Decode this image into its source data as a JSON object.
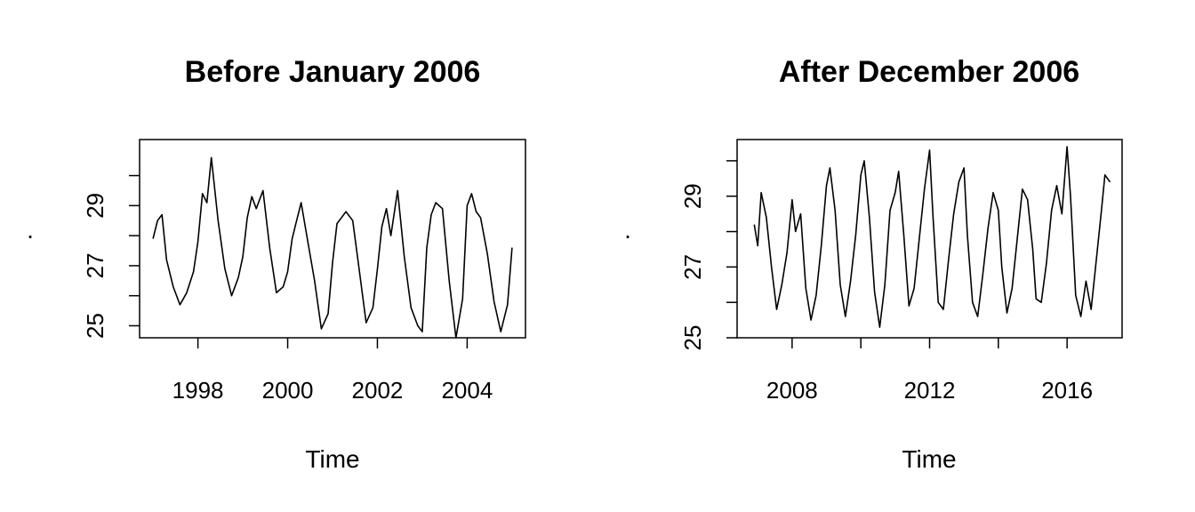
{
  "chart_data": [
    {
      "type": "line",
      "title": "Before January 2006",
      "xlabel": "Time",
      "ylabel": ".",
      "xlim": [
        1996.7,
        2005.3
      ],
      "ylim": [
        24.6,
        31.2
      ],
      "x_ticks": [
        1998,
        2000,
        2002,
        2004
      ],
      "y_ticks": [
        25,
        26,
        27,
        28,
        29,
        30
      ],
      "y_tick_labels": [
        "25",
        "27",
        "29"
      ],
      "y_labeled_ticks": [
        25,
        27,
        29
      ],
      "grid": false,
      "series": [
        {
          "x": [
            1997.0,
            1997.1,
            1997.2,
            1997.3,
            1997.45,
            1997.6,
            1997.75,
            1997.9,
            1998.0,
            1998.1,
            1998.2,
            1998.3,
            1998.45,
            1998.6,
            1998.75,
            1998.9,
            1999.0,
            1999.1,
            1999.2,
            1999.3,
            1999.45,
            1999.6,
            1999.75,
            1999.9,
            2000.0,
            2000.1,
            2000.2,
            2000.3,
            2000.45,
            2000.6,
            2000.75,
            2000.9,
            2001.0,
            2001.1,
            2001.2,
            2001.3,
            2001.45,
            2001.6,
            2001.75,
            2001.9,
            2002.0,
            2002.1,
            2002.2,
            2002.3,
            2002.45,
            2002.6,
            2002.75,
            2002.9,
            2003.0,
            2003.1,
            2003.2,
            2003.3,
            2003.45,
            2003.6,
            2003.75,
            2003.9,
            2004.0,
            2004.1,
            2004.2,
            2004.3,
            2004.45,
            2004.6,
            2004.75,
            2004.9,
            2005.0
          ],
          "y": [
            27.9,
            28.5,
            28.7,
            27.2,
            26.3,
            25.7,
            26.1,
            26.8,
            27.8,
            29.4,
            29.1,
            30.6,
            28.5,
            26.9,
            26.0,
            26.6,
            27.3,
            28.6,
            29.3,
            28.9,
            29.5,
            27.6,
            26.1,
            26.3,
            26.8,
            27.9,
            28.5,
            29.1,
            27.8,
            26.5,
            24.9,
            25.4,
            27.1,
            28.4,
            28.6,
            28.8,
            28.5,
            26.8,
            25.1,
            25.6,
            26.9,
            28.3,
            28.9,
            28.0,
            29.5,
            27.3,
            25.6,
            25.0,
            24.8,
            27.6,
            28.7,
            29.1,
            28.9,
            26.5,
            24.6,
            25.9,
            29.0,
            29.4,
            28.8,
            28.6,
            27.4,
            25.8,
            24.8,
            25.7,
            27.6
          ]
        }
      ]
    },
    {
      "type": "line",
      "title": "After December 2006",
      "xlabel": "Time",
      "ylabel": ".",
      "xlim": [
        2006.4,
        2017.6
      ],
      "ylim": [
        25.0,
        30.6
      ],
      "x_ticks": [
        2008,
        2010,
        2012,
        2014,
        2016
      ],
      "x_tick_labels": [
        "2008",
        "2012",
        "2016"
      ],
      "x_labeled_ticks": [
        2008,
        2012,
        2016
      ],
      "y_ticks": [
        25,
        26,
        27,
        28,
        29,
        30
      ],
      "y_tick_labels": [
        "25",
        "27",
        "29"
      ],
      "y_labeled_ticks": [
        25,
        27,
        29
      ],
      "grid": false,
      "series": [
        {
          "x": [
            2006.9,
            2007.0,
            2007.1,
            2007.25,
            2007.4,
            2007.55,
            2007.7,
            2007.85,
            2008.0,
            2008.1,
            2008.25,
            2008.4,
            2008.55,
            2008.7,
            2008.85,
            2009.0,
            2009.1,
            2009.25,
            2009.4,
            2009.55,
            2009.7,
            2009.85,
            2010.0,
            2010.1,
            2010.25,
            2010.4,
            2010.55,
            2010.7,
            2010.85,
            2011.0,
            2011.1,
            2011.25,
            2011.4,
            2011.55,
            2011.7,
            2011.85,
            2012.0,
            2012.1,
            2012.25,
            2012.4,
            2012.55,
            2012.7,
            2012.85,
            2013.0,
            2013.1,
            2013.25,
            2013.4,
            2013.55,
            2013.7,
            2013.85,
            2014.0,
            2014.1,
            2014.25,
            2014.4,
            2014.55,
            2014.7,
            2014.85,
            2015.0,
            2015.1,
            2015.25,
            2015.4,
            2015.55,
            2015.7,
            2015.85,
            2016.0,
            2016.1,
            2016.25,
            2016.4,
            2016.55,
            2016.7,
            2016.85,
            2017.0,
            2017.1,
            2017.25
          ],
          "y": [
            28.2,
            27.6,
            29.1,
            28.4,
            27.0,
            25.8,
            26.5,
            27.4,
            28.9,
            28.0,
            28.5,
            26.4,
            25.5,
            26.2,
            27.6,
            29.3,
            29.8,
            28.6,
            26.5,
            25.6,
            26.6,
            27.9,
            29.6,
            30.0,
            28.4,
            26.3,
            25.3,
            26.5,
            28.6,
            29.1,
            29.7,
            27.9,
            25.9,
            26.4,
            27.8,
            29.2,
            30.3,
            28.4,
            26.0,
            25.8,
            27.2,
            28.5,
            29.4,
            29.8,
            27.9,
            26.0,
            25.6,
            26.8,
            28.1,
            29.1,
            28.6,
            27.0,
            25.7,
            26.4,
            27.8,
            29.2,
            28.9,
            27.5,
            26.1,
            26.0,
            27.1,
            28.6,
            29.3,
            28.5,
            30.4,
            29.0,
            26.2,
            25.6,
            26.6,
            25.8,
            27.2,
            28.6,
            29.6,
            29.4
          ]
        }
      ]
    }
  ]
}
